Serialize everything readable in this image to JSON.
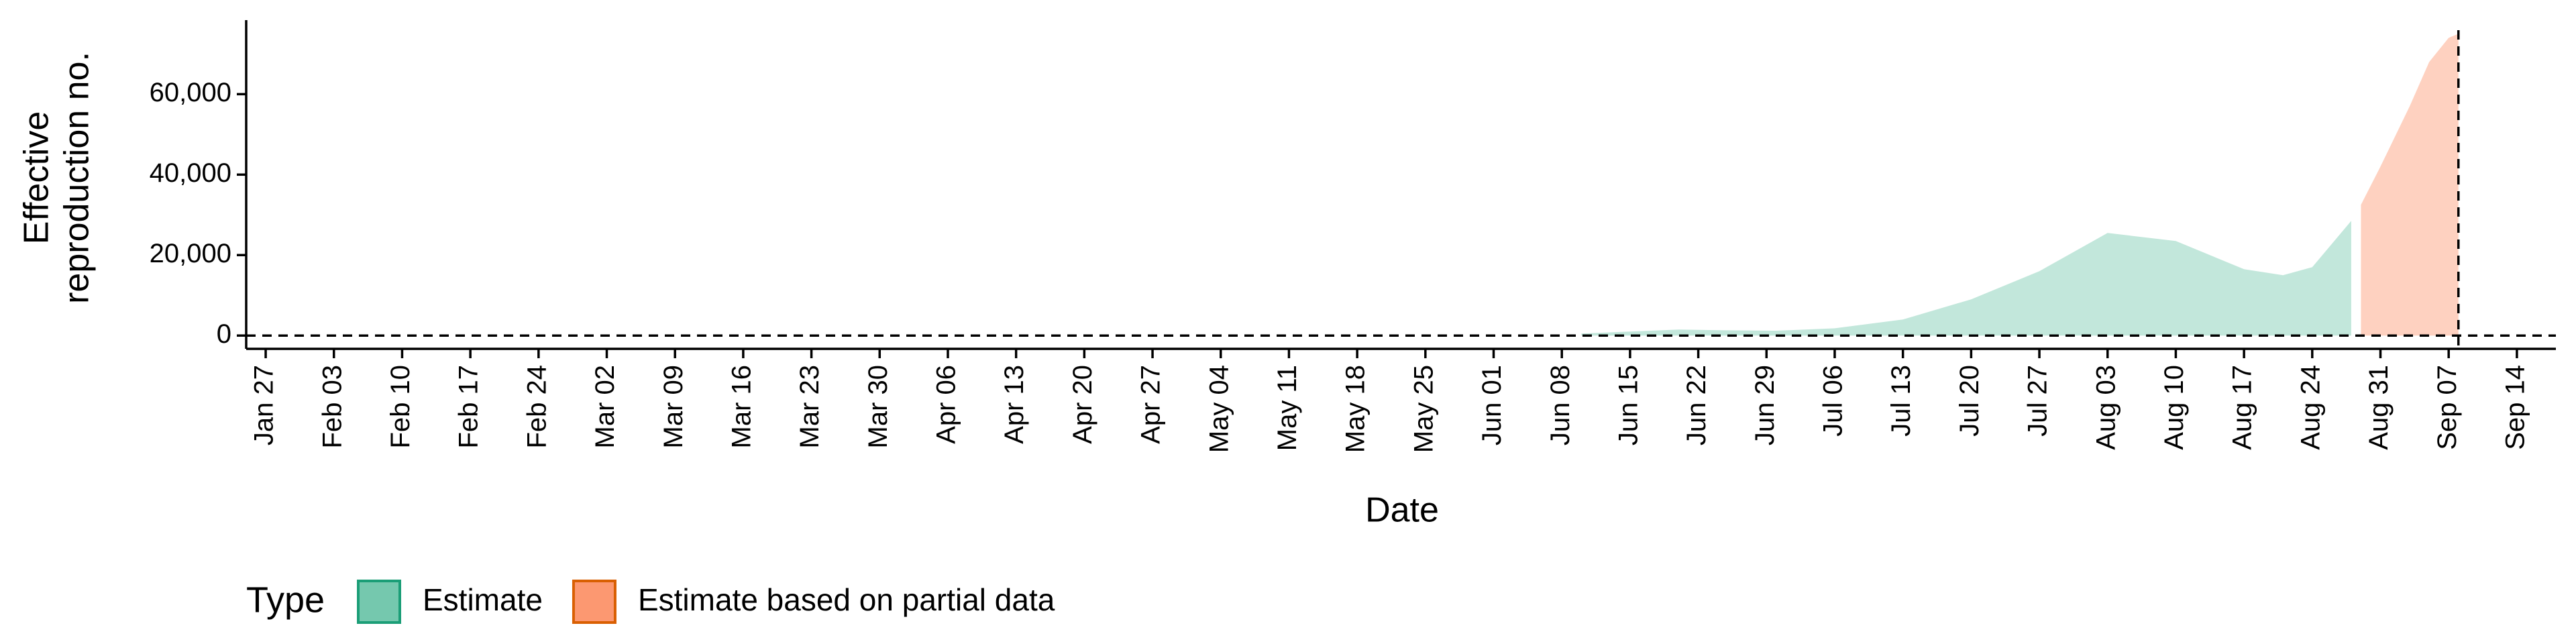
{
  "chart_data": {
    "type": "area",
    "xlabel": "Date",
    "ylabel": [
      "Effective",
      "reproduction no."
    ],
    "legend_title": "Type",
    "legend_position": "bottom",
    "xlim": [
      "Jan 25",
      "Sep 18"
    ],
    "xticks": [
      "Jan 27",
      "Feb 03",
      "Feb 10",
      "Feb 17",
      "Feb 24",
      "Mar 02",
      "Mar 09",
      "Mar 16",
      "Mar 23",
      "Mar 30",
      "Apr 06",
      "Apr 13",
      "Apr 20",
      "Apr 27",
      "May 04",
      "May 11",
      "May 18",
      "May 25",
      "Jun 01",
      "Jun 08",
      "Jun 15",
      "Jun 22",
      "Jun 29",
      "Jul 06",
      "Jul 13",
      "Jul 20",
      "Jul 27",
      "Aug 03",
      "Aug 10",
      "Aug 17",
      "Aug 24",
      "Aug 31",
      "Sep 07",
      "Sep 14"
    ],
    "ylim": [
      -3300,
      78400
    ],
    "yticks": [
      0,
      {
        "value": 20000,
        "label": "20,000"
      },
      {
        "value": 40000,
        "label": "40,000"
      },
      {
        "value": 60000,
        "label": "60,000"
      }
    ],
    "hline": 0,
    "vline": "Sep 08",
    "series": [
      {
        "name": "Estimate",
        "color": "#66c2a5",
        "line_color": "#1b9e77",
        "x": [
          "Jun 10",
          "Jun 15",
          "Jun 20",
          "Jun 25",
          "Jun 30",
          "Jul 06",
          "Jul 13",
          "Jul 20",
          "Jul 27",
          "Aug 03",
          "Aug 10",
          "Aug 17",
          "Aug 21",
          "Aug 24",
          "Aug 28"
        ],
        "values": [
          500,
          1000,
          1500,
          1300,
          1200,
          1800,
          4000,
          9000,
          16000,
          25500,
          23500,
          16500,
          15000,
          17000,
          28500
        ]
      },
      {
        "name": "Estimate based on partial data",
        "color": "#fc8d62",
        "line_color": "#d95f02",
        "x": [
          "Aug 29",
          "Aug 31",
          "Sep 03",
          "Sep 05",
          "Sep 07",
          "Sep 08"
        ],
        "values": [
          32500,
          42000,
          57000,
          68000,
          74000,
          75000
        ]
      }
    ]
  }
}
